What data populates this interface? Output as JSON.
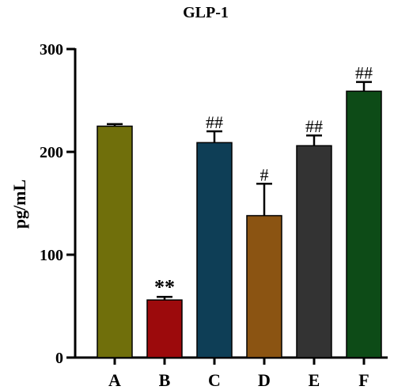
{
  "chart_data": {
    "type": "bar",
    "title": "GLP-1",
    "xlabel": "",
    "ylabel": "pg/mL",
    "ylim": [
      0,
      300
    ],
    "yticks": [
      0,
      100,
      200,
      300
    ],
    "grid": false,
    "categories": [
      "A",
      "B",
      "C",
      "D",
      "E",
      "F"
    ],
    "values": [
      225,
      56,
      209,
      138,
      206,
      259
    ],
    "errors": [
      2,
      3,
      11,
      31,
      10,
      9
    ],
    "annotations": [
      "",
      "**",
      "##",
      "#",
      "##",
      "##"
    ],
    "colors": [
      "#706f0b",
      "#9c0a0c",
      "#0e3e56",
      "#8b5412",
      "#333333",
      "#0d4b17"
    ]
  }
}
